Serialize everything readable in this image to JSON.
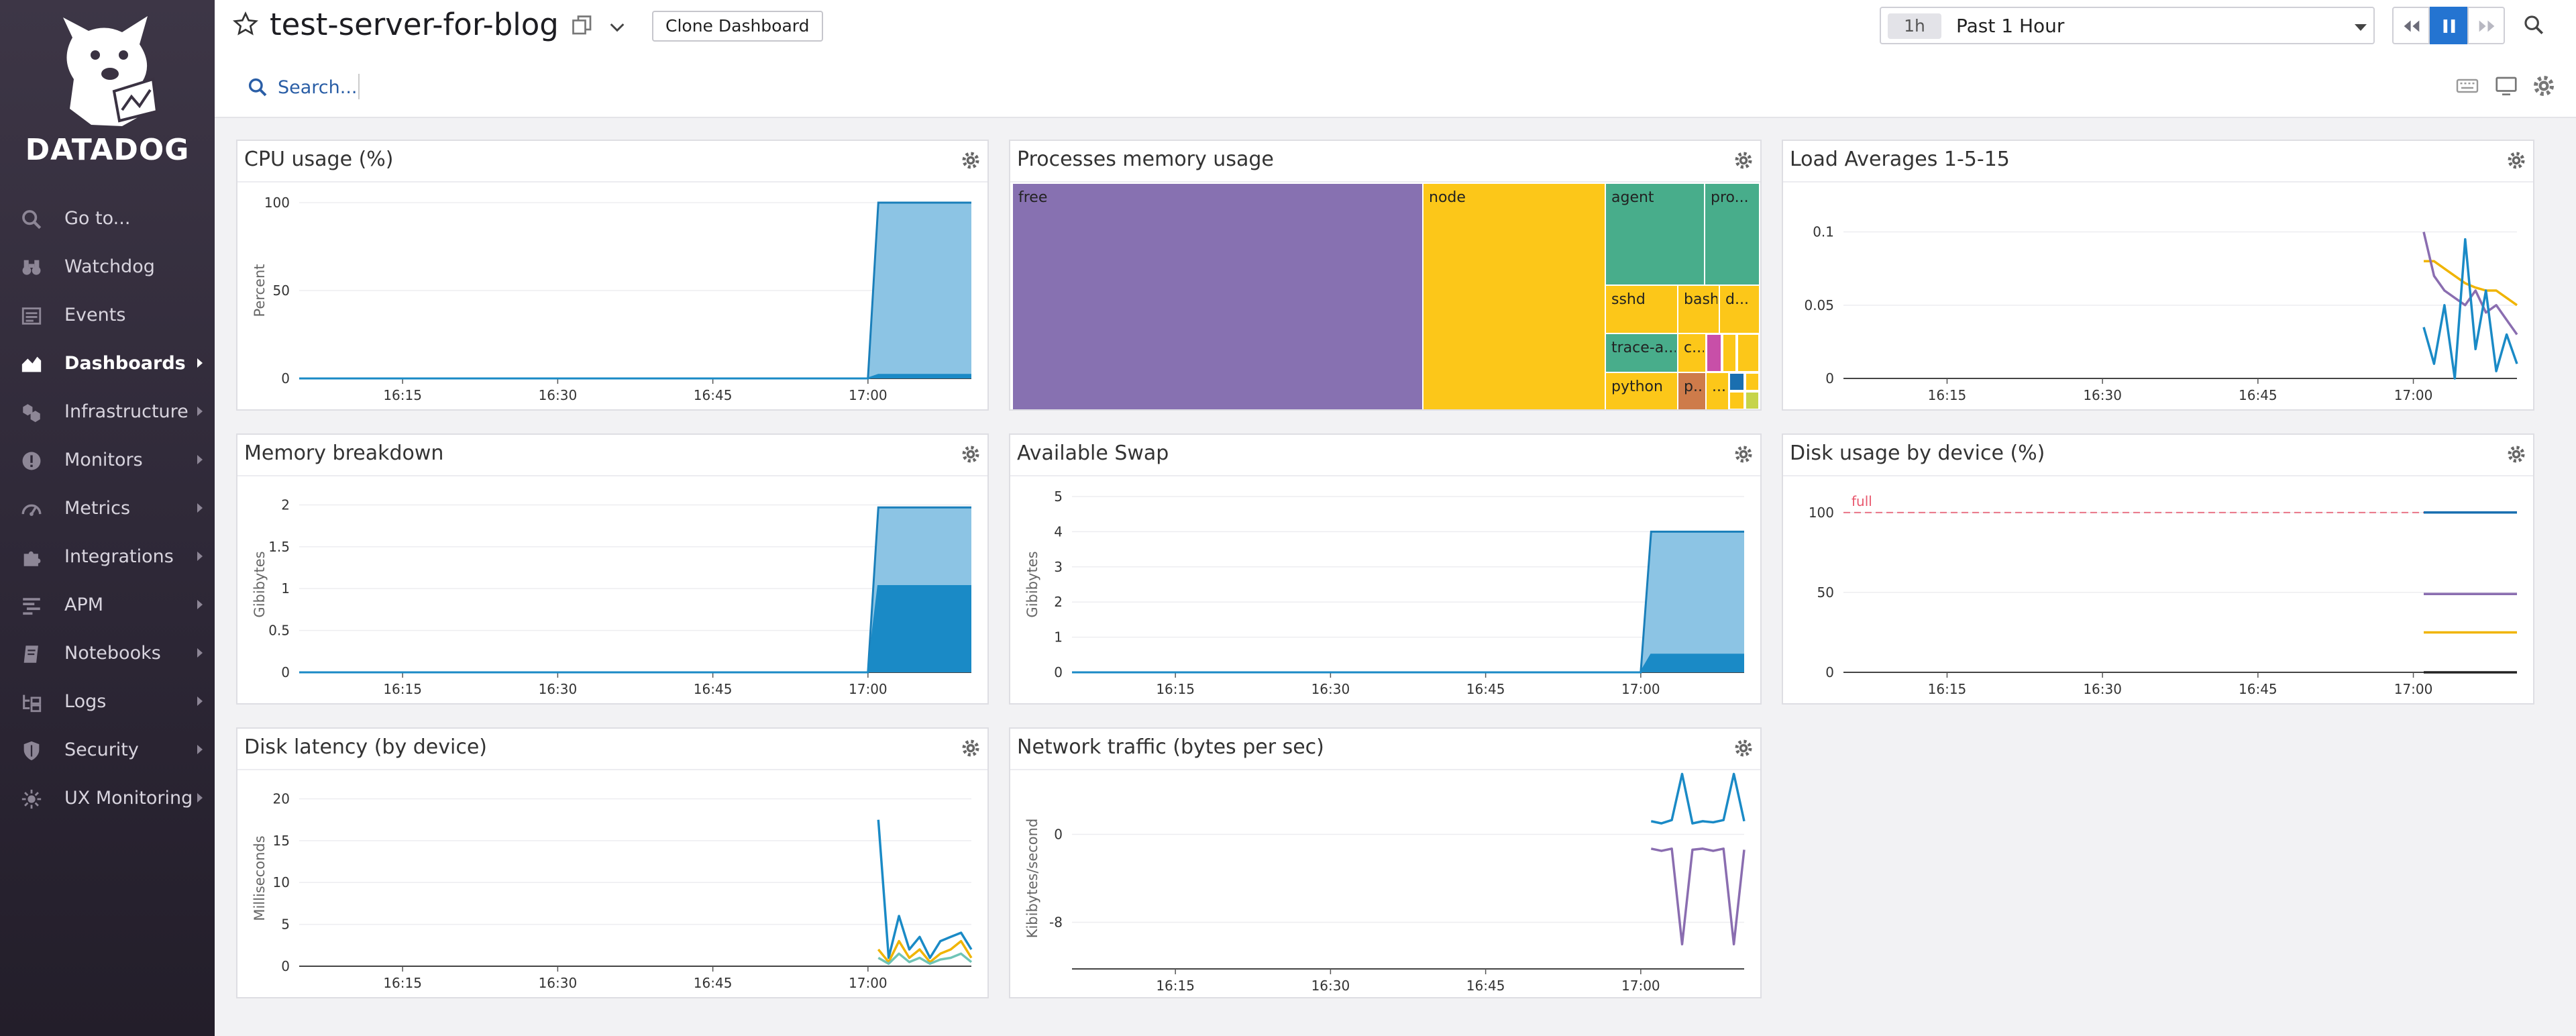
{
  "sidebar": {
    "brand": "DATADOG",
    "items": [
      {
        "label": "Go to...",
        "icon": "search-icon",
        "submenu": false
      },
      {
        "label": "Watchdog",
        "icon": "binoculars-icon",
        "submenu": false
      },
      {
        "label": "Events",
        "icon": "events-list-icon",
        "submenu": false
      },
      {
        "label": "Dashboards",
        "icon": "dashboards-chart-icon",
        "submenu": true,
        "active": true
      },
      {
        "label": "Infrastructure",
        "icon": "hexagons-icon",
        "submenu": true
      },
      {
        "label": "Monitors",
        "icon": "alert-icon",
        "submenu": true
      },
      {
        "label": "Metrics",
        "icon": "gauge-icon",
        "submenu": true
      },
      {
        "label": "Integrations",
        "icon": "puzzle-icon",
        "submenu": true
      },
      {
        "label": "APM",
        "icon": "apm-bars-icon",
        "submenu": true
      },
      {
        "label": "Notebooks",
        "icon": "notebook-icon",
        "submenu": true
      },
      {
        "label": "Logs",
        "icon": "logs-icon",
        "submenu": true
      },
      {
        "label": "Security",
        "icon": "shield-icon",
        "submenu": true
      },
      {
        "label": "UX Monitoring",
        "icon": "ux-monitoring-icon",
        "submenu": true
      }
    ]
  },
  "header": {
    "title": "test-server-for-blog",
    "clone_label": "Clone Dashboard",
    "search_label": "Search...",
    "timeframe_short": "1h",
    "timeframe_label": "Past 1 Hour"
  },
  "colors": {
    "accent": "#2474d1",
    "sidebar_bg": "#2e2837",
    "series_blue": "#1a8ac6",
    "series_light_blue": "#8cc4e4",
    "series_purple": "#8a6db0",
    "series_orange": "#f0b400",
    "threshold_red": "#e8566c",
    "treemap_purple": "#8771b1",
    "treemap_yellow": "#fcc719",
    "treemap_green": "#48ad8b"
  },
  "x_ticks": [
    "16:15",
    "16:30",
    "16:45",
    "17:00"
  ],
  "widgets": {
    "cpu": {
      "title": "CPU usage (%)"
    },
    "procmem": {
      "title": "Processes memory usage"
    },
    "load": {
      "title": "Load Averages 1-5-15"
    },
    "membreak": {
      "title": "Memory breakdown"
    },
    "swap": {
      "title": "Available Swap"
    },
    "disk": {
      "title": "Disk usage by device (%)"
    },
    "latency": {
      "title": "Disk latency (by device)"
    },
    "network": {
      "title": "Network traffic (bytes per sec)"
    }
  },
  "chart_data": [
    {
      "id": "cpu",
      "type": "area",
      "title": "CPU usage (%)",
      "ylabel": "Percent",
      "ylim": [
        0,
        100
      ],
      "yticks": [
        "0",
        "50",
        "100"
      ],
      "xlim": [
        "16:05",
        "17:10"
      ],
      "x": [
        "16:05",
        "16:10",
        "16:15",
        "16:20",
        "16:25",
        "16:30",
        "16:35",
        "16:40",
        "16:45",
        "16:50",
        "16:55",
        "17:00",
        "17:01",
        "17:05",
        "17:10"
      ],
      "series": [
        {
          "values": [
            0,
            0,
            0,
            0,
            0,
            0,
            0,
            0,
            0,
            0,
            0,
            0,
            100,
            100,
            100
          ],
          "color": "#8cc4e4"
        },
        {
          "values": [
            0,
            0,
            0,
            0,
            0,
            0,
            0,
            0,
            0,
            0,
            0,
            0,
            2,
            2,
            2
          ],
          "color": "#1a8ac6"
        }
      ]
    },
    {
      "id": "procmem",
      "type": "treemap",
      "title": "Processes memory usage",
      "tiles": [
        {
          "label": "free",
          "color": "#8771b1"
        },
        {
          "label": "node",
          "color": "#fcc719"
        },
        {
          "label": "agent",
          "color": "#48ad8b"
        },
        {
          "label": "pro...",
          "color": "#48ad8b"
        },
        {
          "label": "sshd",
          "color": "#fcc719"
        },
        {
          "label": "bash",
          "color": "#fcc719"
        },
        {
          "label": "d...",
          "color": "#fcc719"
        },
        {
          "label": "trace-a...",
          "color": "#48ad8b"
        },
        {
          "label": "c...",
          "color": "#fcc719"
        },
        {
          "label": "python",
          "color": "#fcc719"
        },
        {
          "label": "p...",
          "color": "#ce7b4a"
        },
        {
          "label": "...",
          "color": "#fcc719"
        }
      ]
    },
    {
      "id": "load",
      "type": "line",
      "title": "Load Averages 1-5-15",
      "ylim": [
        0,
        0.12
      ],
      "yticks": [
        "0",
        "0.05",
        "0.1"
      ],
      "xlim": [
        "16:05",
        "17:10"
      ],
      "x": [
        "17:01",
        "17:02",
        "17:03",
        "17:04",
        "17:05",
        "17:06",
        "17:07",
        "17:08",
        "17:09",
        "17:10"
      ],
      "series": [
        {
          "values": [
            0.08,
            0.08,
            0.075,
            0.07,
            0.065,
            0.062,
            0.06,
            0.06,
            0.055,
            0.05
          ],
          "color": "#f0b400"
        },
        {
          "values": [
            0.1,
            0.07,
            0.06,
            0.055,
            0.05,
            0.06,
            0.045,
            0.05,
            0.04,
            0.03
          ],
          "color": "#8a6db0"
        },
        {
          "values": [
            0.035,
            0.01,
            0.05,
            0.0,
            0.095,
            0.02,
            0.06,
            0.005,
            0.03,
            0.01
          ],
          "color": "#1a8ac6"
        }
      ]
    },
    {
      "id": "membreak",
      "type": "area",
      "title": "Memory breakdown",
      "ylabel": "Gibibytes",
      "ylim": [
        0,
        2.1
      ],
      "yticks": [
        "0",
        "0.5",
        "1",
        "1.5",
        "2"
      ],
      "xlim": [
        "16:05",
        "17:10"
      ],
      "x": [
        "16:05",
        "16:10",
        "16:15",
        "16:20",
        "16:25",
        "16:30",
        "16:35",
        "16:40",
        "16:45",
        "16:50",
        "16:55",
        "17:00",
        "17:01",
        "17:05",
        "17:10"
      ],
      "series": [
        {
          "values": [
            0,
            0,
            0,
            0,
            0,
            0,
            0,
            0,
            0,
            0,
            0,
            0,
            1.97,
            1.97,
            1.97
          ],
          "color": "#8cc4e4"
        },
        {
          "values": [
            0,
            0,
            0,
            0,
            0,
            0,
            0,
            0,
            0,
            0,
            0,
            0,
            1.03,
            1.03,
            1.03
          ],
          "color": "#1a8ac6"
        }
      ]
    },
    {
      "id": "swap",
      "type": "area",
      "title": "Available Swap",
      "ylabel": "Gibibytes",
      "ylim": [
        0,
        5
      ],
      "yticks": [
        "0",
        "1",
        "2",
        "3",
        "4",
        "5"
      ],
      "xlim": [
        "16:05",
        "17:10"
      ],
      "x": [
        "16:05",
        "16:10",
        "16:15",
        "16:20",
        "16:25",
        "16:30",
        "16:35",
        "16:40",
        "16:45",
        "16:50",
        "16:55",
        "17:00",
        "17:01",
        "17:05",
        "17:10"
      ],
      "series": [
        {
          "values": [
            0,
            0,
            0,
            0,
            0,
            0,
            0,
            0,
            0,
            0,
            0,
            0,
            4,
            4,
            4
          ],
          "color": "#8cc4e4"
        },
        {
          "values": [
            0,
            0,
            0,
            0,
            0,
            0,
            0,
            0,
            0,
            0,
            0,
            0,
            0.5,
            0.5,
            0.5
          ],
          "color": "#1a8ac6"
        }
      ]
    },
    {
      "id": "disk",
      "type": "line",
      "title": "Disk usage by device (%)",
      "ylim": [
        0,
        110
      ],
      "yticks": [
        "0",
        "50",
        "100"
      ],
      "xlim": [
        "16:05",
        "17:10"
      ],
      "threshold": {
        "label": "full",
        "value": 100,
        "color": "#e8566c"
      },
      "x": [
        "17:01",
        "17:10"
      ],
      "series": [
        {
          "values": [
            100,
            100
          ],
          "color": "#1a6fb0"
        },
        {
          "values": [
            49,
            49
          ],
          "color": "#8a6db0"
        },
        {
          "values": [
            25,
            25
          ],
          "color": "#f0b400"
        },
        {
          "values": [
            0,
            0
          ],
          "color": "#222222"
        }
      ]
    },
    {
      "id": "latency",
      "type": "line",
      "title": "Disk latency (by device)",
      "ylabel": "Milliseconds",
      "ylim": [
        0,
        21
      ],
      "yticks": [
        "0",
        "5",
        "10",
        "15",
        "20"
      ],
      "xlim": [
        "16:05",
        "17:10"
      ],
      "x": [
        "17:01",
        "17:02",
        "17:03",
        "17:04",
        "17:05",
        "17:06",
        "17:07",
        "17:08",
        "17:09",
        "17:10"
      ],
      "series": [
        {
          "values": [
            17.5,
            1,
            6,
            2,
            3.5,
            1,
            3,
            3.5,
            4,
            2
          ],
          "color": "#1a8ac6"
        },
        {
          "values": [
            2,
            0.5,
            3,
            1,
            2,
            0.5,
            1.5,
            2,
            3,
            1
          ],
          "color": "#f0b400"
        },
        {
          "values": [
            1,
            0.3,
            1.5,
            0.5,
            1,
            0.3,
            0.8,
            1,
            1.5,
            0.5
          ],
          "color": "#6fc4b6"
        }
      ]
    },
    {
      "id": "network",
      "type": "line",
      "title": "Network traffic (bytes per sec)",
      "ylabel": "Kibibytes/second",
      "ylim": [
        -12,
        4
      ],
      "yticks": [
        "-8",
        "0"
      ],
      "xlim": [
        "16:05",
        "17:10"
      ],
      "x": [
        "17:01",
        "17:02",
        "17:03",
        "17:04",
        "17:05",
        "17:06",
        "17:07",
        "17:08",
        "17:09",
        "17:10"
      ],
      "series": [
        {
          "values": [
            1.2,
            1.0,
            1.3,
            5.5,
            1.0,
            1.2,
            1.1,
            1.3,
            5.5,
            1.2
          ],
          "color": "#1a8ac6"
        },
        {
          "values": [
            -1.3,
            -1.5,
            -1.3,
            -10,
            -1.4,
            -1.3,
            -1.5,
            -1.3,
            -10,
            -1.4
          ],
          "color": "#8a6db0"
        }
      ]
    }
  ]
}
